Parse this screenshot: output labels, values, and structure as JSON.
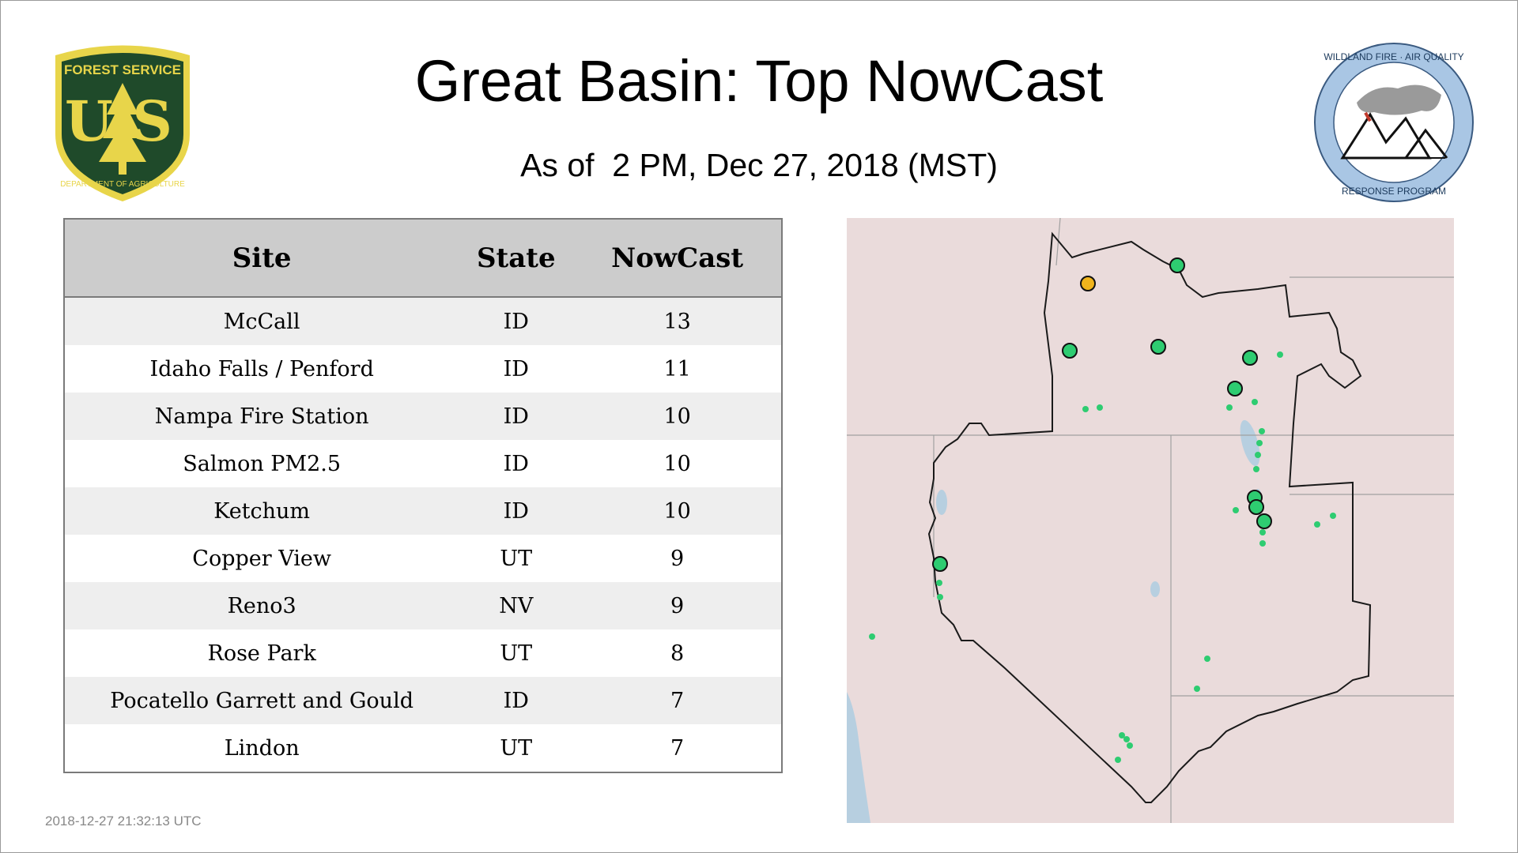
{
  "header": {
    "title": "Great Basin: Top NowCast",
    "subtitle": "As of  2 PM, Dec 27, 2018 (MST)"
  },
  "logos": {
    "forest_service": {
      "top_text": "FOREST SERVICE",
      "letters": "U S",
      "bottom_text": "DEPARTMENT OF AGRICULTURE",
      "colors": {
        "shield": "#1f4a2a",
        "border": "#e8d54a"
      }
    },
    "wildland_fire": {
      "top_text": "WILDLAND FIRE · AIR QUALITY",
      "bottom_text": "RESPONSE PROGRAM",
      "colors": {
        "ring": "#a9c6e4"
      }
    }
  },
  "table": {
    "headers": [
      "Site",
      "State",
      "NowCast"
    ],
    "rows": [
      [
        "McCall",
        "ID",
        "13"
      ],
      [
        "Idaho Falls / Penford",
        "ID",
        "11"
      ],
      [
        "Nampa Fire Station",
        "ID",
        "10"
      ],
      [
        "Salmon PM2.5",
        "ID",
        "10"
      ],
      [
        "Ketchum",
        "ID",
        "10"
      ],
      [
        "Copper View",
        "UT",
        "9"
      ],
      [
        "Reno3",
        "NV",
        "9"
      ],
      [
        "Rose Park",
        "UT",
        "8"
      ],
      [
        "Pocatello Garrett and Gould",
        "ID",
        "7"
      ],
      [
        "Lindon",
        "UT",
        "7"
      ]
    ]
  },
  "map": {
    "colors": {
      "land": "#eadbdb",
      "water": "#b7cfe0",
      "boundary": "#222222",
      "good": "#2ecc71",
      "moderate": "#f0b41c"
    }
  },
  "footer": {
    "timestamp": "2018-12-27 21:32:13 UTC"
  }
}
